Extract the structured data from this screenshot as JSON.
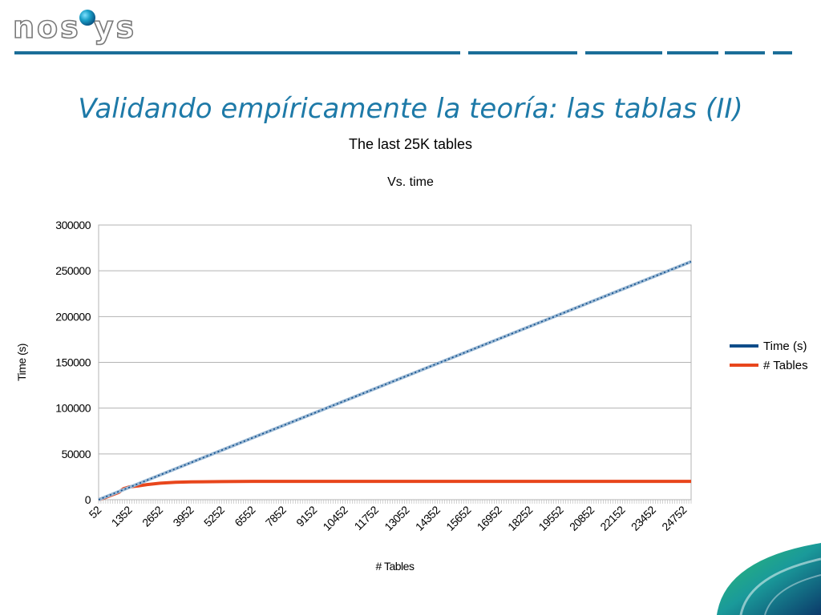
{
  "logo": {
    "text_left": "nos",
    "text_right": "ys"
  },
  "slide": {
    "title": "Validando empíricamente la teoría: las tablas (II)"
  },
  "colors": {
    "accent": "#1e7aa8",
    "time_series": "#0e4d8a",
    "tables_series": "#e8461c"
  },
  "chart_data": {
    "type": "line",
    "title": "The last 25K tables",
    "subtitle": "Vs. time",
    "xlabel": "# Tables",
    "ylabel": "Time (s)",
    "ylim": [
      0,
      300000
    ],
    "yticks": [
      0,
      50000,
      100000,
      150000,
      200000,
      250000,
      300000
    ],
    "xticks": [
      "52",
      "1352",
      "2652",
      "3952",
      "5252",
      "6552",
      "7852",
      "9152",
      "10452",
      "11752",
      "13052",
      "14352",
      "15652",
      "16952",
      "18252",
      "19552",
      "20852",
      "22152",
      "23452",
      "24752"
    ],
    "x_range": [
      52,
      25052
    ],
    "legend_position": "right",
    "grid": true,
    "series": [
      {
        "name": "Time (s)",
        "x": [
          52,
          25052
        ],
        "y": [
          0,
          260000
        ]
      },
      {
        "name": "# Tables",
        "x": [
          52,
          300,
          600,
          900,
          1100,
          1352,
          1700,
          2100,
          2652,
          3300,
          3952,
          5252,
          6552,
          7852,
          25052
        ],
        "y": [
          0,
          2000,
          5000,
          8000,
          12000,
          14000,
          15000,
          16500,
          18000,
          19000,
          19500,
          19800,
          20000,
          20000,
          20000
        ]
      }
    ]
  }
}
